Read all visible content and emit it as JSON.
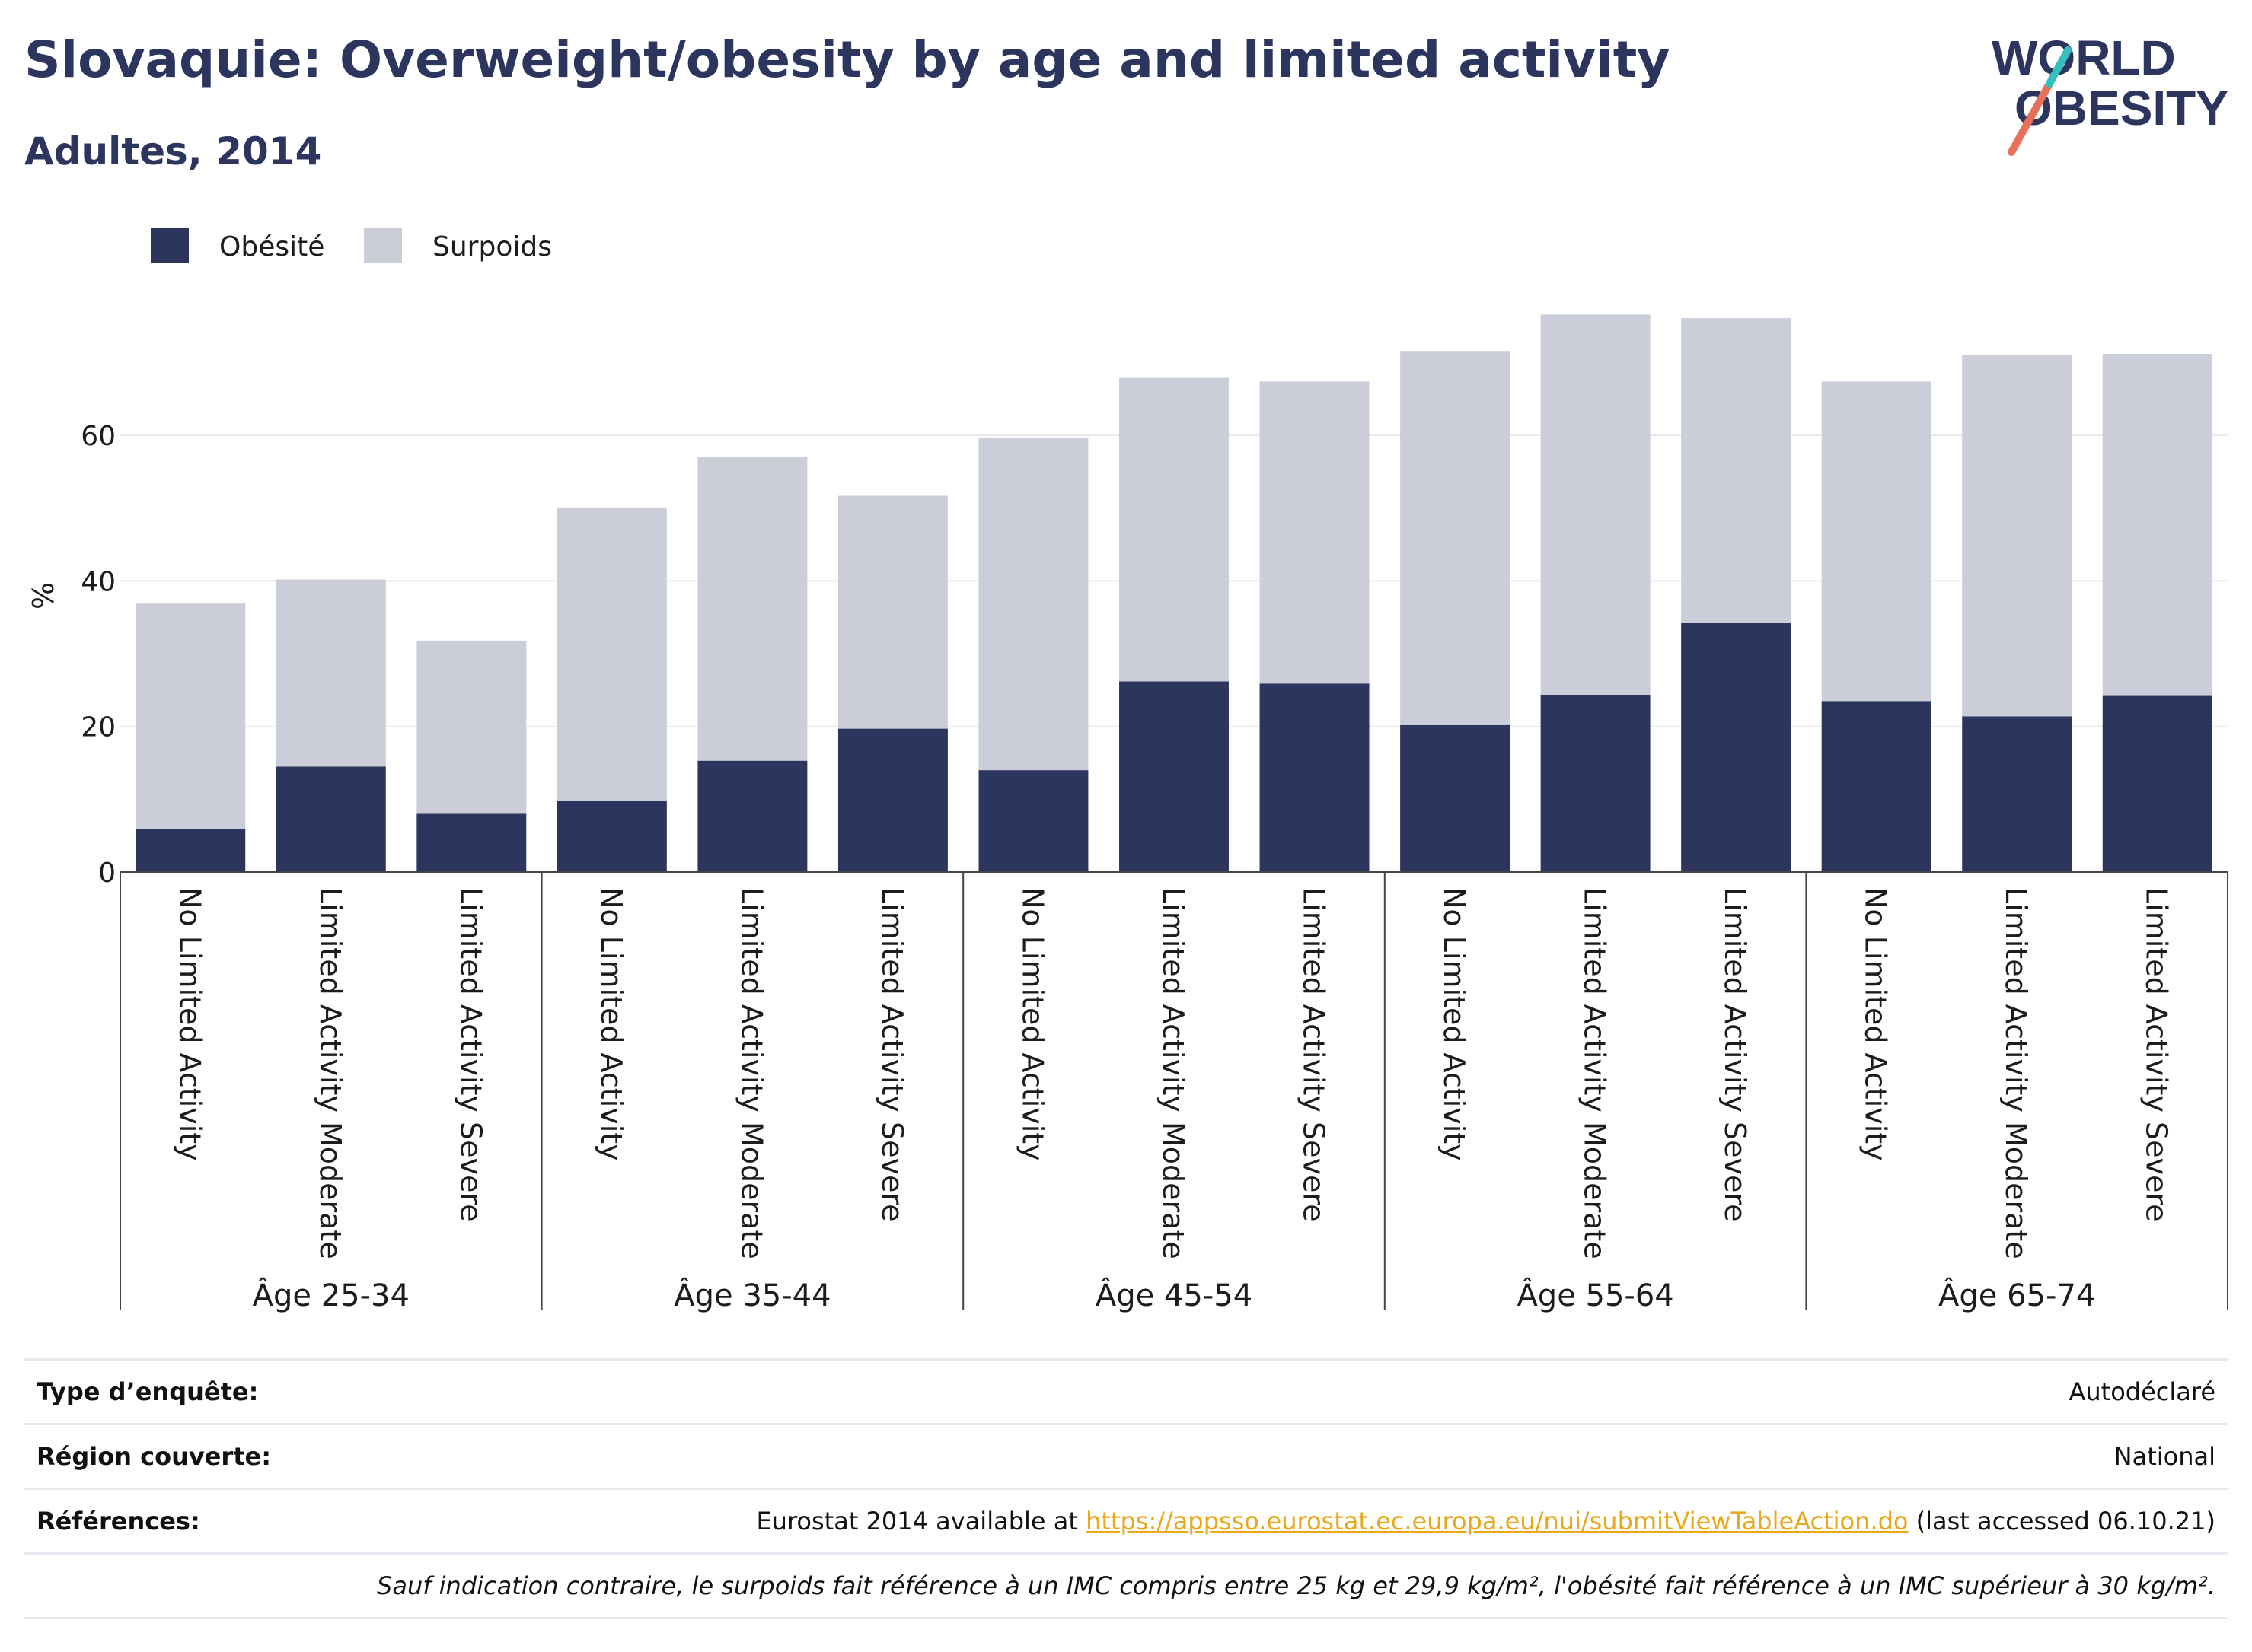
{
  "header": {
    "title": "Slovaquie: Overweight/obesity by age and limited activity",
    "subtitle": "Adultes, 2014",
    "logo_line1": "WORLD",
    "logo_line2": "OBESITY"
  },
  "colors": {
    "obese": "#2b355e",
    "overweight": "#cbcdd9",
    "text": "#1c1c1c",
    "link": "#e8a81a",
    "logo_text": "#2b355e",
    "logo_slash_a": "#e8705a",
    "logo_slash_b": "#36bfbf"
  },
  "chart_data": {
    "type": "bar",
    "stacked": true,
    "ylabel": "%",
    "ylim": [
      0,
      78
    ],
    "yticks": [
      0,
      20,
      40,
      60
    ],
    "grid": true,
    "legend_position": "top-left",
    "groups": [
      {
        "label": "Âge 25-34",
        "categories": [
          "No Limited Activity",
          "Limited Activity Moderate",
          "Limited Activity Severe"
        ]
      },
      {
        "label": "Âge 35-44",
        "categories": [
          "No Limited Activity",
          "Limited Activity Moderate",
          "Limited Activity Severe"
        ]
      },
      {
        "label": "Âge 45-54",
        "categories": [
          "No Limited Activity",
          "Limited Activity Moderate",
          "Limited Activity Severe"
        ]
      },
      {
        "label": "Âge 55-64",
        "categories": [
          "No Limited Activity",
          "Limited Activity Moderate",
          "Limited Activity Severe"
        ]
      },
      {
        "label": "Âge 65-74",
        "categories": [
          "No Limited Activity",
          "Limited Activity Moderate",
          "Limited Activity Severe"
        ]
      }
    ],
    "series": [
      {
        "name": "Obésité",
        "color_key": "obese",
        "values": [
          5.9,
          14.5,
          8.0,
          9.8,
          15.3,
          19.7,
          14.0,
          26.2,
          25.9,
          20.2,
          24.3,
          34.2,
          23.5,
          21.4,
          24.2
        ]
      },
      {
        "name": "Surpoids",
        "color_key": "overweight",
        "values": [
          31.0,
          25.7,
          23.8,
          40.3,
          41.7,
          32.0,
          45.7,
          41.7,
          41.5,
          51.4,
          52.3,
          41.9,
          43.9,
          49.6,
          47.0
        ]
      }
    ]
  },
  "footer": {
    "rows": [
      {
        "label": "Type d’enquête:",
        "value": "Autodéclaré"
      },
      {
        "label": "Région couverte:",
        "value": "National"
      },
      {
        "label": "Références:",
        "value_prefix": "Eurostat 2014 available at ",
        "link": "https://appsso.eurostat.ec.europa.eu/nui/submitViewTableAction.do",
        "value_suffix": " (last accessed 06.10.21)"
      }
    ],
    "note": "Sauf indication contraire, le surpoids fait référence à un IMC compris entre 25 kg et 29,9 kg/m², l'obésité fait référence à un IMC supérieur à 30 kg/m²."
  }
}
